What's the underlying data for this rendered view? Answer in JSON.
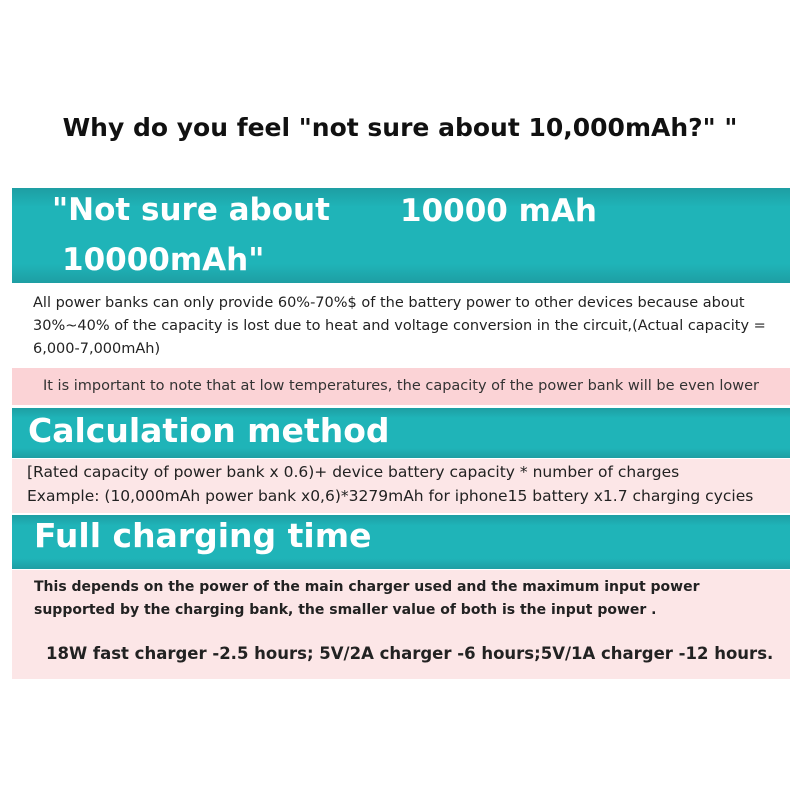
{
  "header": {
    "title": "Why do you feel \"not sure about 10,000mAh?\" \""
  },
  "comparison": {
    "left_line1": "\"Not sure about",
    "left_line2": "10000mAh\"",
    "right": "10000 mAh"
  },
  "explanation": "All power banks can only provide 60%-70%$ of the battery power to other devices because about 30%~40% of the capacity is lost due to heat and voltage conversion in the circuit,(Actual capacity = 6,000-7,000mAh)",
  "note": "It is important to note that at low temperatures, the capacity of the power bank will be even lower",
  "calculation": {
    "heading": "Calculation method",
    "formula": "[Rated capacity of power bank x 0.6)+ device battery capacity * number of charges",
    "example": "Example: (10,000mAh power bank x0,6)*3279mAh for iphone15 battery x1.7 charging cycies"
  },
  "charging": {
    "heading": "Full charging time",
    "description": "This depends on the power of the main charger used and the maximum input power supported by the charging bank, the smaller value of both is the input power .",
    "times": "18W fast charger -2.5 hours; 5V/2A charger -6 hours;5V/1A charger -12 hours."
  }
}
